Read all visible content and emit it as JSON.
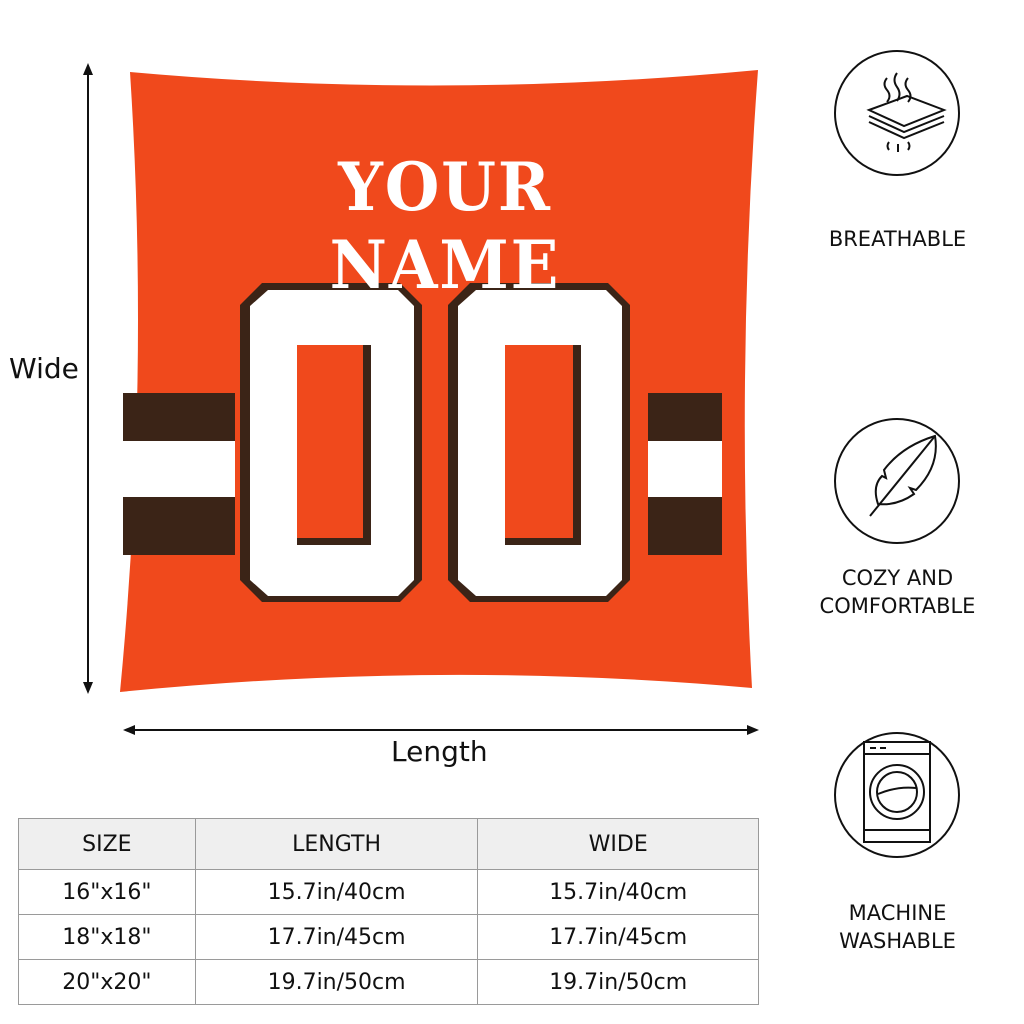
{
  "product": {
    "name_text": "YOUR NAME",
    "number_text": "00",
    "colors": {
      "body": "#f0491c",
      "stripe_dark": "#3b2417",
      "stripe_light": "#ffffff",
      "number_fill": "#ffffff",
      "number_outline": "#3b2417"
    }
  },
  "dimensions": {
    "vertical_label": "Wide",
    "horizontal_label": "Length"
  },
  "size_table": {
    "headers": [
      "SIZE",
      "LENGTH",
      "WIDE"
    ],
    "rows": [
      [
        "16\"x16\"",
        "15.7in/40cm",
        "15.7in/40cm"
      ],
      [
        "18\"x18\"",
        "17.7in/45cm",
        "17.7in/45cm"
      ],
      [
        "20\"x20\"",
        "19.7in/50cm",
        "19.7in/50cm"
      ]
    ]
  },
  "features": [
    {
      "icon": "breathable-layers-icon",
      "label": "BREATHABLE"
    },
    {
      "icon": "feather-icon",
      "label_line1": "COZY AND",
      "label_line2": "COMFORTABLE"
    },
    {
      "icon": "washing-machine-icon",
      "label_line1": "MACHINE",
      "label_line2": "WASHABLE"
    }
  ]
}
